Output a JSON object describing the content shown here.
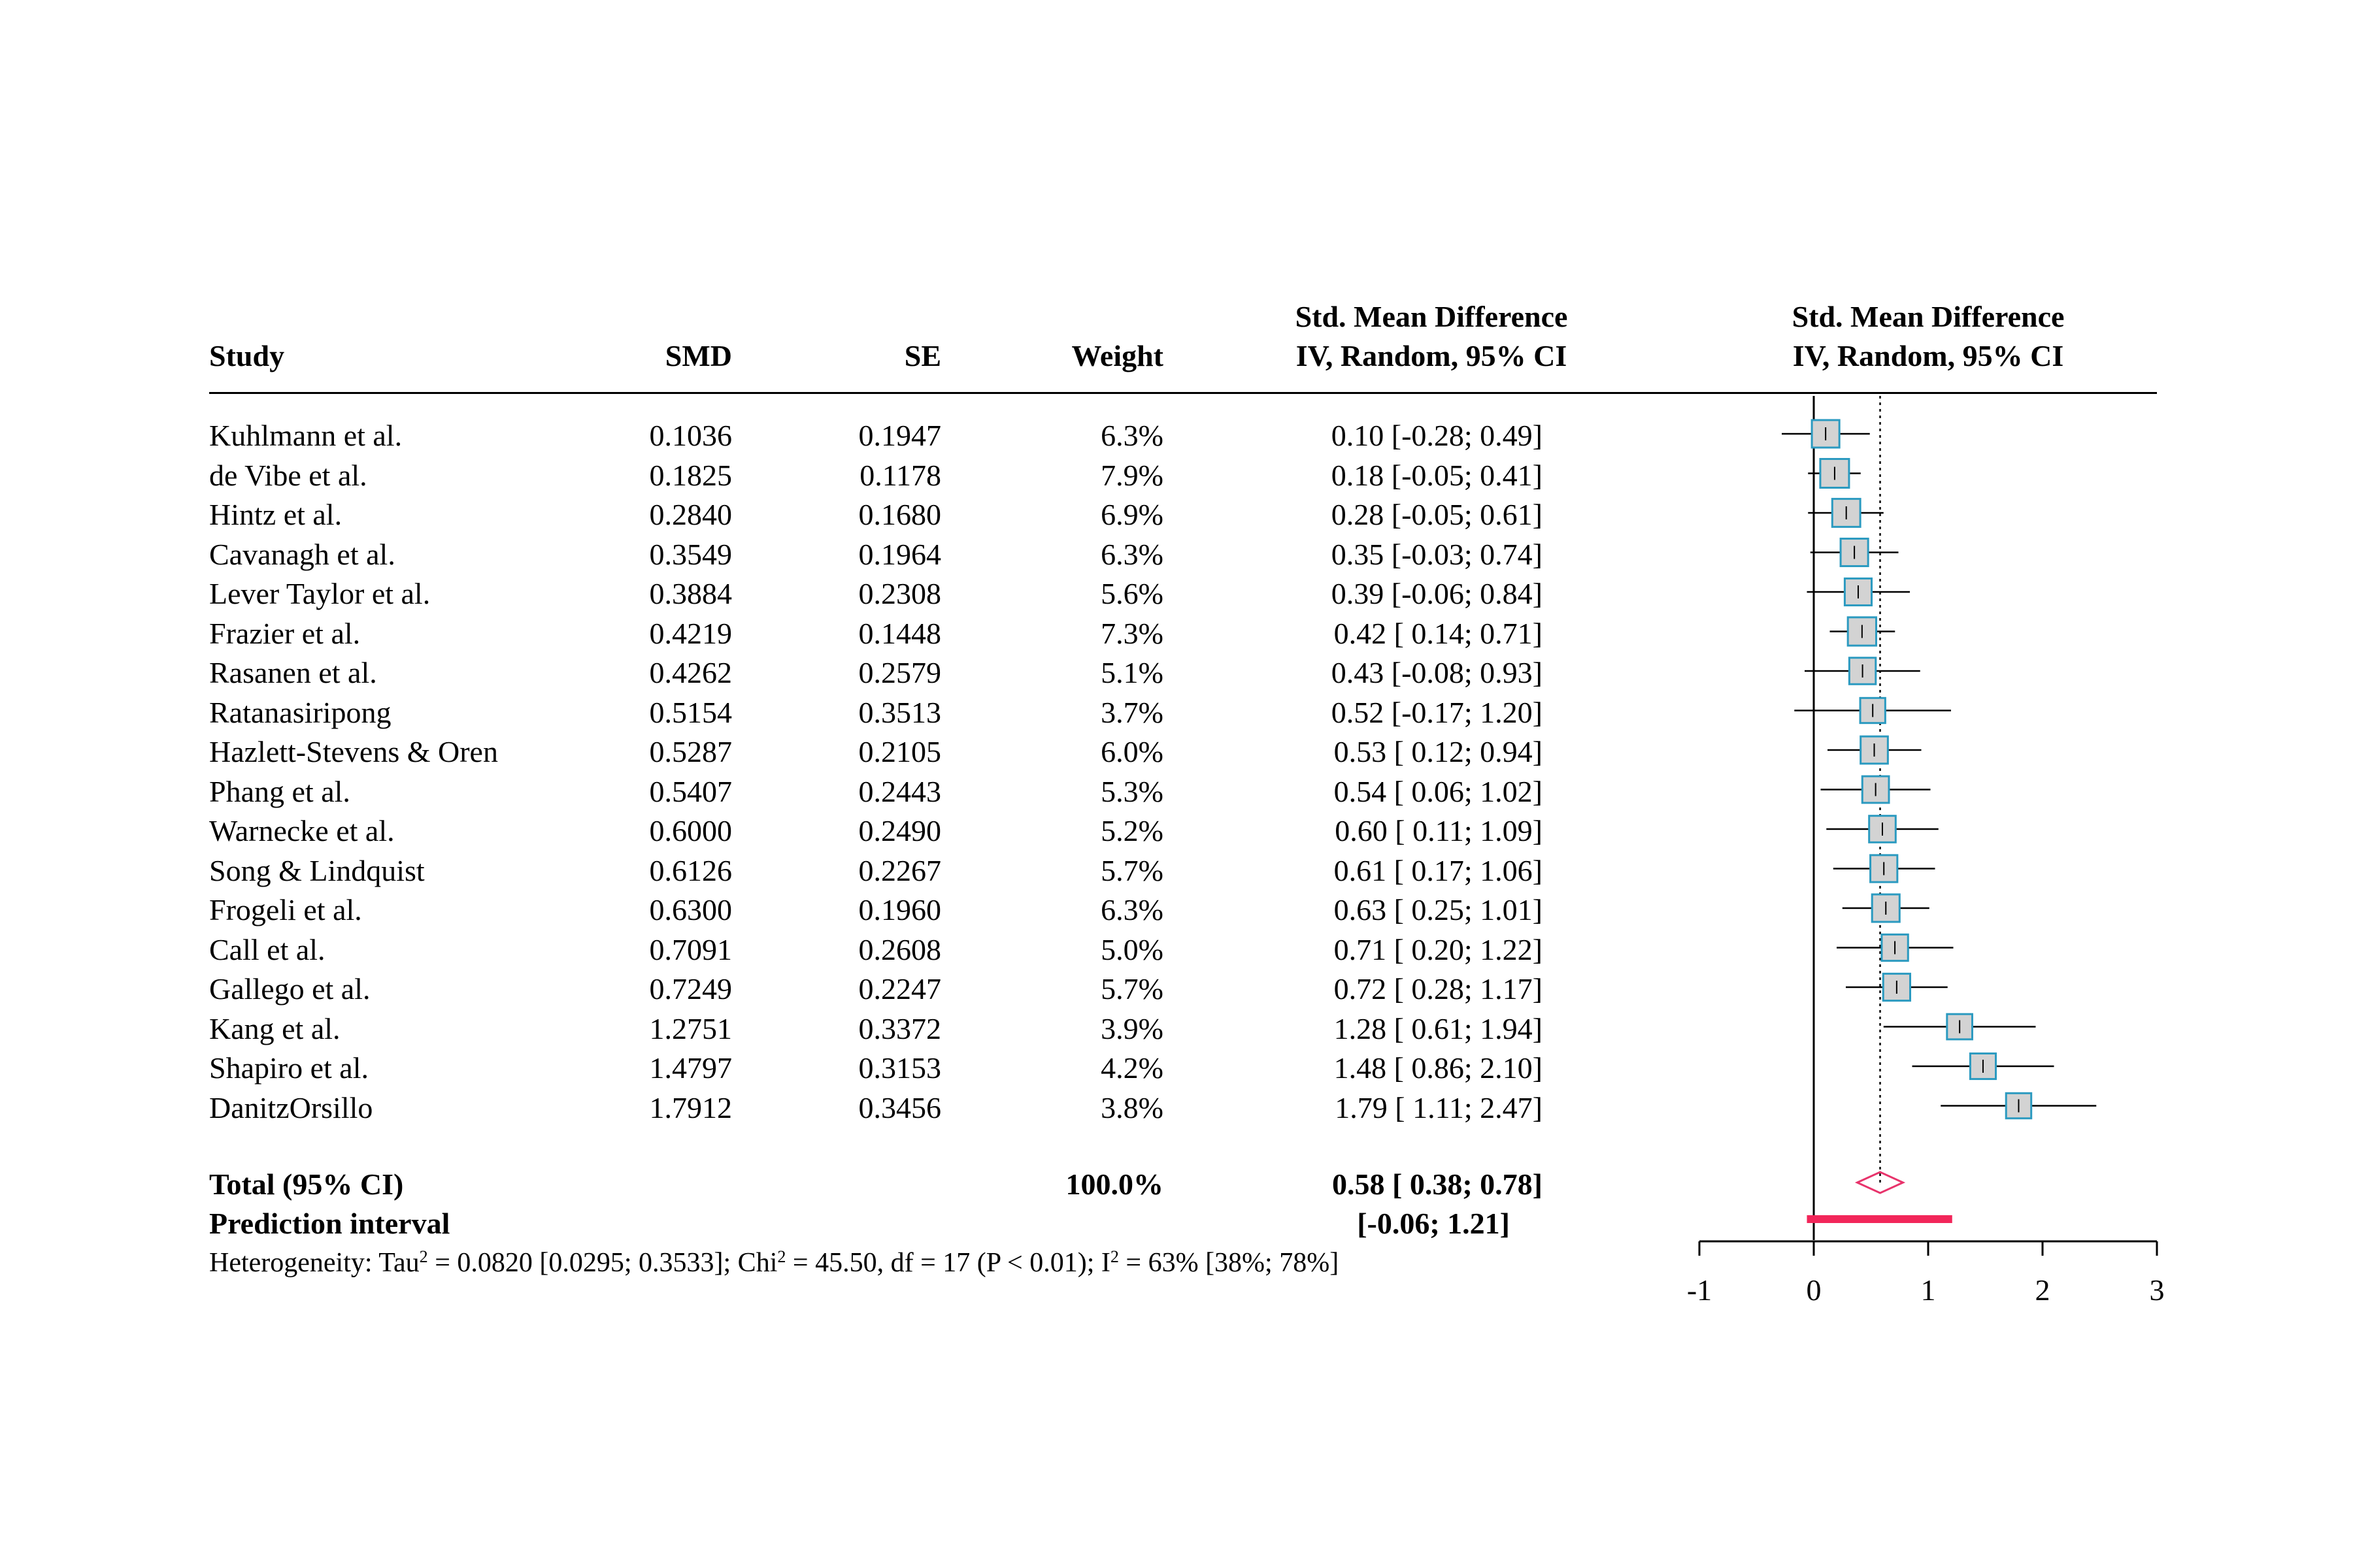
{
  "headers": {
    "study": "Study",
    "smd": "SMD",
    "se": "SE",
    "weight": "Weight",
    "ci_line1": "Std. Mean Difference",
    "ci_line2": "IV, Random, 95% CI",
    "plot_line1": "Std. Mean Difference",
    "plot_line2": "IV, Random, 95% CI"
  },
  "total": {
    "label": "Total (95% CI)",
    "weight": "100.0%",
    "ci": "0.58 [ 0.38; 0.78]"
  },
  "prediction": {
    "label": "Prediction interval",
    "ci": "[-0.06; 1.21]"
  },
  "heterogeneity": {
    "part1": "Heterogeneity: Tau",
    "sup1": "2",
    "part2": " = 0.0820 [0.0295; 0.3533]; Chi",
    "sup2": "2",
    "part3": " = 45.50, df = 17 (P < 0.01); I",
    "sup3": "2",
    "part4": " = 63% [38%; 78%]"
  },
  "chart_data": {
    "type": "forest",
    "x_ticks": [
      "-1",
      "0",
      "1",
      "2",
      "3"
    ],
    "xlim": [
      -1,
      3
    ],
    "null_line": 0,
    "pooled_line": 0.58,
    "colors": {
      "box_fill": "#d3d3d3",
      "box_border": "#2b9ac0",
      "diamond": "#e8336b",
      "prediction_bar": "#f2265a"
    },
    "studies": [
      {
        "study": "Kuhlmann et al.",
        "smd": "0.1036",
        "se": "0.1947",
        "weight": "6.3%",
        "ci": "0.10 [-0.28; 0.49]",
        "est": 0.1036,
        "lo": -0.28,
        "hi": 0.49,
        "w": 6.3
      },
      {
        "study": "de Vibe et al.",
        "smd": "0.1825",
        "se": "0.1178",
        "weight": "7.9%",
        "ci": "0.18 [-0.05; 0.41]",
        "est": 0.1825,
        "lo": -0.05,
        "hi": 0.41,
        "w": 7.9
      },
      {
        "study": "Hintz et al.",
        "smd": "0.2840",
        "se": "0.1680",
        "weight": "6.9%",
        "ci": "0.28 [-0.05; 0.61]",
        "est": 0.284,
        "lo": -0.05,
        "hi": 0.61,
        "w": 6.9
      },
      {
        "study": "Cavanagh et al.",
        "smd": "0.3549",
        "se": "0.1964",
        "weight": "6.3%",
        "ci": "0.35 [-0.03; 0.74]",
        "est": 0.3549,
        "lo": -0.03,
        "hi": 0.74,
        "w": 6.3
      },
      {
        "study": "Lever Taylor et al.",
        "smd": "0.3884",
        "se": "0.2308",
        "weight": "5.6%",
        "ci": "0.39 [-0.06; 0.84]",
        "est": 0.3884,
        "lo": -0.06,
        "hi": 0.84,
        "w": 5.6
      },
      {
        "study": "Frazier et al.",
        "smd": "0.4219",
        "se": "0.1448",
        "weight": "7.3%",
        "ci": "0.42 [ 0.14; 0.71]",
        "est": 0.4219,
        "lo": 0.14,
        "hi": 0.71,
        "w": 7.3
      },
      {
        "study": "Rasanen et al.",
        "smd": "0.4262",
        "se": "0.2579",
        "weight": "5.1%",
        "ci": "0.43 [-0.08; 0.93]",
        "est": 0.4262,
        "lo": -0.08,
        "hi": 0.93,
        "w": 5.1
      },
      {
        "study": "Ratanasiripong",
        "smd": "0.5154",
        "se": "0.3513",
        "weight": "3.7%",
        "ci": "0.52 [-0.17; 1.20]",
        "est": 0.5154,
        "lo": -0.17,
        "hi": 1.2,
        "w": 3.7
      },
      {
        "study": "Hazlett-Stevens & Oren",
        "smd": "0.5287",
        "se": "0.2105",
        "weight": "6.0%",
        "ci": "0.53 [ 0.12; 0.94]",
        "est": 0.5287,
        "lo": 0.12,
        "hi": 0.94,
        "w": 6.0
      },
      {
        "study": "Phang et al.",
        "smd": "0.5407",
        "se": "0.2443",
        "weight": "5.3%",
        "ci": "0.54 [ 0.06; 1.02]",
        "est": 0.5407,
        "lo": 0.06,
        "hi": 1.02,
        "w": 5.3
      },
      {
        "study": "Warnecke et al.",
        "smd": "0.6000",
        "se": "0.2490",
        "weight": "5.2%",
        "ci": "0.60 [ 0.11; 1.09]",
        "est": 0.6,
        "lo": 0.11,
        "hi": 1.09,
        "w": 5.2
      },
      {
        "study": "Song & Lindquist",
        "smd": "0.6126",
        "se": "0.2267",
        "weight": "5.7%",
        "ci": "0.61 [ 0.17; 1.06]",
        "est": 0.6126,
        "lo": 0.17,
        "hi": 1.06,
        "w": 5.7
      },
      {
        "study": "Frogeli et al.",
        "smd": "0.6300",
        "se": "0.1960",
        "weight": "6.3%",
        "ci": "0.63 [ 0.25; 1.01]",
        "est": 0.63,
        "lo": 0.25,
        "hi": 1.01,
        "w": 6.3
      },
      {
        "study": "Call et al.",
        "smd": "0.7091",
        "se": "0.2608",
        "weight": "5.0%",
        "ci": "0.71 [ 0.20; 1.22]",
        "est": 0.7091,
        "lo": 0.2,
        "hi": 1.22,
        "w": 5.0
      },
      {
        "study": "Gallego et al.",
        "smd": "0.7249",
        "se": "0.2247",
        "weight": "5.7%",
        "ci": "0.72 [ 0.28; 1.17]",
        "est": 0.7249,
        "lo": 0.28,
        "hi": 1.17,
        "w": 5.7
      },
      {
        "study": "Kang et al.",
        "smd": "1.2751",
        "se": "0.3372",
        "weight": "3.9%",
        "ci": "1.28 [ 0.61; 1.94]",
        "est": 1.2751,
        "lo": 0.61,
        "hi": 1.94,
        "w": 3.9
      },
      {
        "study": "Shapiro et al.",
        "smd": "1.4797",
        "se": "0.3153",
        "weight": "4.2%",
        "ci": "1.48 [ 0.86; 2.10]",
        "est": 1.4797,
        "lo": 0.86,
        "hi": 2.1,
        "w": 4.2
      },
      {
        "study": "DanitzOrsillo",
        "smd": "1.7912",
        "se": "0.3456",
        "weight": "3.8%",
        "ci": "1.79 [ 1.11; 2.47]",
        "est": 1.7912,
        "lo": 1.11,
        "hi": 2.47,
        "w": 3.8
      }
    ],
    "pooled": {
      "est": 0.58,
      "lo": 0.38,
      "hi": 0.78
    },
    "prediction_interval": {
      "lo": -0.06,
      "hi": 1.21
    }
  }
}
